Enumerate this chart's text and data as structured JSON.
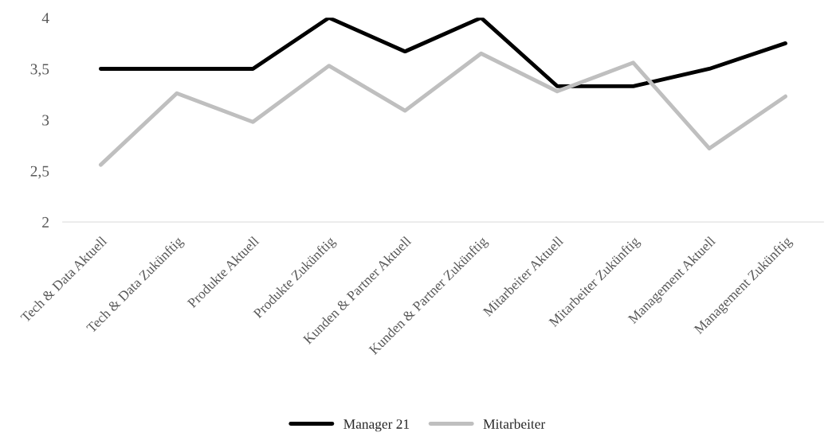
{
  "chart_data": {
    "type": "line",
    "categories": [
      "Tech & Data Aktuell",
      "Tech & Data Zukünftig",
      "Produkte Aktuell",
      "Produkte Zukünftig",
      "Kunden & Partner Aktuell",
      "Kunden & Partner Zukünftig",
      "Mitarbeiter Aktuell",
      "Mitarbeiter Zukünftig",
      "Management Aktuell",
      "Management Zukünftig"
    ],
    "series": [
      {
        "name": "Manager 21",
        "color": "#000000",
        "values": [
          3.5,
          3.5,
          3.5,
          4.0,
          3.67,
          4.0,
          3.33,
          3.33,
          3.5,
          3.75
        ]
      },
      {
        "name": "Mitarbeiter",
        "color": "#bfbfbf",
        "values": [
          2.56,
          3.26,
          2.98,
          3.53,
          3.09,
          3.65,
          3.28,
          3.56,
          2.72,
          3.23
        ]
      }
    ],
    "ylim": [
      2,
      4
    ],
    "yticks": [
      {
        "value": 2,
        "label": "2"
      },
      {
        "value": 2.5,
        "label": "2,5"
      },
      {
        "value": 3,
        "label": "3"
      },
      {
        "value": 3.5,
        "label": "3,5"
      },
      {
        "value": 4,
        "label": "4"
      }
    ],
    "grid": false,
    "legend": "bottom",
    "marker": "none",
    "line_style": "solid"
  }
}
